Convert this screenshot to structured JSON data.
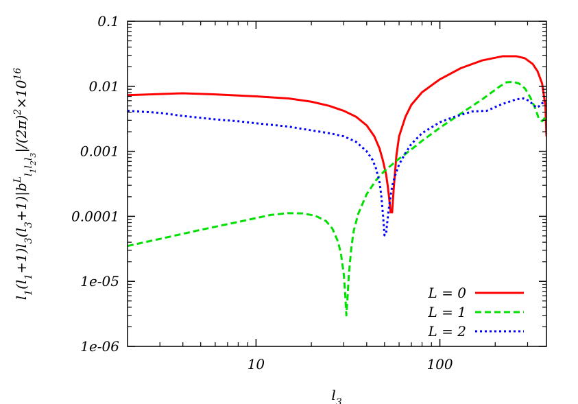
{
  "chart_data": {
    "type": "line",
    "title": "",
    "xlabel": "l_3",
    "ylabel": "l_1(l_1+1)l_3(l_3+1)|b^L_{l_1 l_2 l_3}|/(2π)^2×10^16",
    "x_scale": "log",
    "y_scale": "log",
    "xlim": [
      2,
      380
    ],
    "ylim": [
      1e-06,
      0.1
    ],
    "x_ticks": [
      10,
      100
    ],
    "x_tick_labels": [
      "10",
      "100"
    ],
    "y_ticks": [
      1e-06,
      1e-05,
      0.0001,
      0.001,
      0.01,
      0.1
    ],
    "y_tick_labels": [
      "1e-06",
      "1e-05",
      "0.0001",
      "0.001",
      "0.01",
      "0.1"
    ],
    "grid": false,
    "legend_position": "bottom-right",
    "series": [
      {
        "name": "L = 0",
        "color": "#ff0000",
        "dash": "solid",
        "x": [
          2,
          3,
          4,
          6,
          10,
          15,
          20,
          25,
          30,
          35,
          40,
          44,
          47,
          49,
          51,
          52,
          53,
          54,
          55,
          56,
          58,
          60,
          65,
          70,
          80,
          100,
          130,
          170,
          220,
          260,
          290,
          320,
          340,
          360,
          375,
          380
        ],
        "y": [
          0.0073,
          0.0076,
          0.0078,
          0.0075,
          0.007,
          0.0065,
          0.0058,
          0.005,
          0.0042,
          0.0034,
          0.0025,
          0.0017,
          0.0011,
          0.00072,
          0.00044,
          0.0003,
          0.00019,
          0.000115,
          0.000115,
          0.00025,
          0.00085,
          0.0017,
          0.0034,
          0.0052,
          0.0081,
          0.0128,
          0.019,
          0.025,
          0.029,
          0.029,
          0.027,
          0.022,
          0.017,
          0.011,
          0.005,
          0.0017
        ]
      },
      {
        "name": "L = 1",
        "color": "#00e000",
        "dash": "dashed",
        "x": [
          2,
          3,
          5,
          8,
          12,
          15,
          18,
          21,
          24,
          26,
          28,
          29,
          30,
          30.5,
          31,
          31.5,
          32,
          33,
          34,
          36,
          40,
          45,
          50,
          60,
          70,
          80,
          100,
          130,
          170,
          210,
          230,
          250,
          270,
          290,
          310,
          330,
          345,
          360,
          380
        ],
        "y": [
          3.5e-05,
          4.5e-05,
          6.2e-05,
          8.2e-05,
          0.000105,
          0.000112,
          0.000111,
          0.000102,
          8.5e-05,
          6.5e-05,
          4e-05,
          2.6e-05,
          1.3e-05,
          7e-06,
          3e-06,
          6e-06,
          1.3e-05,
          3.3e-05,
          6e-05,
          0.00011,
          0.00022,
          0.00036,
          0.0005,
          0.00077,
          0.00107,
          0.00145,
          0.0023,
          0.0038,
          0.0063,
          0.0098,
          0.0115,
          0.0117,
          0.011,
          0.0093,
          0.0068,
          0.0046,
          0.0032,
          0.0029,
          0.0035
        ]
      },
      {
        "name": "L = 2",
        "color": "#0000ff",
        "dash": "dotted",
        "x": [
          2,
          3,
          4,
          6,
          8,
          10,
          15,
          20,
          25,
          30,
          35,
          40,
          43,
          45,
          47,
          48,
          49,
          50,
          51,
          52,
          53,
          54,
          55,
          57,
          60,
          65,
          70,
          80,
          100,
          120,
          150,
          180,
          210,
          230,
          260,
          285,
          305,
          320,
          335,
          345,
          360,
          375
        ],
        "y": [
          0.0042,
          0.0039,
          0.0035,
          0.0031,
          0.0029,
          0.0027,
          0.0024,
          0.0021,
          0.0019,
          0.0017,
          0.0014,
          0.001,
          0.00074,
          0.00054,
          0.00033,
          0.00021,
          0.000108,
          5.1e-05,
          5.5e-05,
          9.2e-05,
          0.000145,
          0.00021,
          0.00029,
          0.00042,
          0.00063,
          0.00094,
          0.0013,
          0.0019,
          0.0028,
          0.0034,
          0.0041,
          0.0042,
          0.0051,
          0.0056,
          0.0063,
          0.0065,
          0.006,
          0.0053,
          0.0047,
          0.0049,
          0.0055,
          0.0056
        ]
      }
    ]
  }
}
